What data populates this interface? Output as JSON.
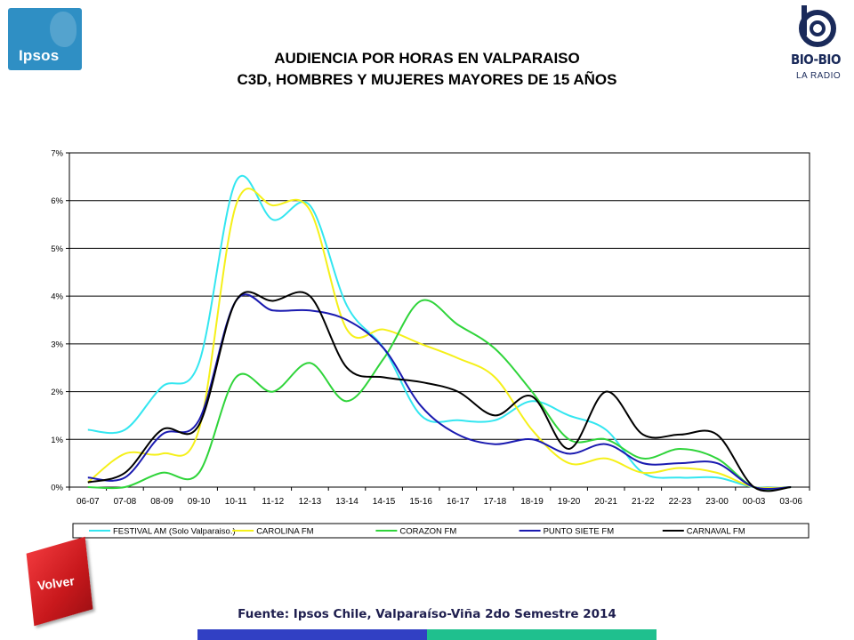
{
  "header": {
    "title_line1": "AUDIENCIA POR HORAS EN VALPARAISO",
    "title_line2": "C3D, HOMBRES Y MUJERES MAYORES DE 15 AÑOS"
  },
  "logos": {
    "left": "Ipsos",
    "right_name": "BIO-BIO",
    "right_sub": "LA RADIO"
  },
  "footer": {
    "source": "Fuente: Ipsos Chile, Valparaíso-Viña 2do Semestre 2014",
    "back_button": "Volver",
    "bar_colors": [
      "#3140c4",
      "#1fc08e"
    ]
  },
  "chart_data": {
    "type": "line",
    "title": "",
    "xlabel": "",
    "ylabel": "",
    "categories": [
      "06-07",
      "07-08",
      "08-09",
      "09-10",
      "10-11",
      "11-12",
      "12-13",
      "13-14",
      "14-15",
      "15-16",
      "16-17",
      "17-18",
      "18-19",
      "19-20",
      "20-21",
      "21-22",
      "22-23",
      "23-00",
      "00-03",
      "03-06"
    ],
    "y_tick_labels": [
      "0%",
      "1%",
      "2%",
      "3%",
      "4%",
      "5%",
      "6%",
      "7%"
    ],
    "ylim": [
      0,
      7
    ],
    "grid": "horizontal",
    "legend_position": "bottom",
    "series": [
      {
        "name": "FESTIVAL AM (Solo Valparaiso.)",
        "color": "#33e6f0",
        "values": [
          1.2,
          1.2,
          2.1,
          2.6,
          6.4,
          5.6,
          5.9,
          3.8,
          2.9,
          1.5,
          1.4,
          1.4,
          1.8,
          1.5,
          1.2,
          0.3,
          0.2,
          0.2,
          0.0,
          0.0
        ]
      },
      {
        "name": "CAROLINA FM",
        "color": "#f5f019",
        "values": [
          0.1,
          0.7,
          0.7,
          1.2,
          5.9,
          5.9,
          5.8,
          3.3,
          3.3,
          3.0,
          2.7,
          2.3,
          1.2,
          0.5,
          0.6,
          0.3,
          0.4,
          0.3,
          0.0,
          0.0
        ]
      },
      {
        "name": "CORAZON FM",
        "color": "#2fd43a",
        "values": [
          0.0,
          0.0,
          0.3,
          0.3,
          2.3,
          2.0,
          2.6,
          1.8,
          2.7,
          3.9,
          3.4,
          2.9,
          2.0,
          1.0,
          1.0,
          0.6,
          0.8,
          0.6,
          0.0,
          0.0
        ]
      },
      {
        "name": "PUNTO SIETE FM",
        "color": "#1a1ab0",
        "values": [
          0.2,
          0.2,
          1.1,
          1.4,
          3.9,
          3.7,
          3.7,
          3.5,
          2.9,
          1.7,
          1.1,
          0.9,
          1.0,
          0.7,
          0.9,
          0.5,
          0.5,
          0.5,
          0.0,
          0.0
        ]
      },
      {
        "name": "CARNAVAL FM",
        "color": "#000000",
        "values": [
          0.1,
          0.3,
          1.2,
          1.3,
          3.9,
          3.9,
          4.0,
          2.5,
          2.3,
          2.2,
          2.0,
          1.5,
          1.9,
          0.8,
          2.0,
          1.1,
          1.1,
          1.1,
          0.0,
          0.0
        ]
      }
    ]
  }
}
